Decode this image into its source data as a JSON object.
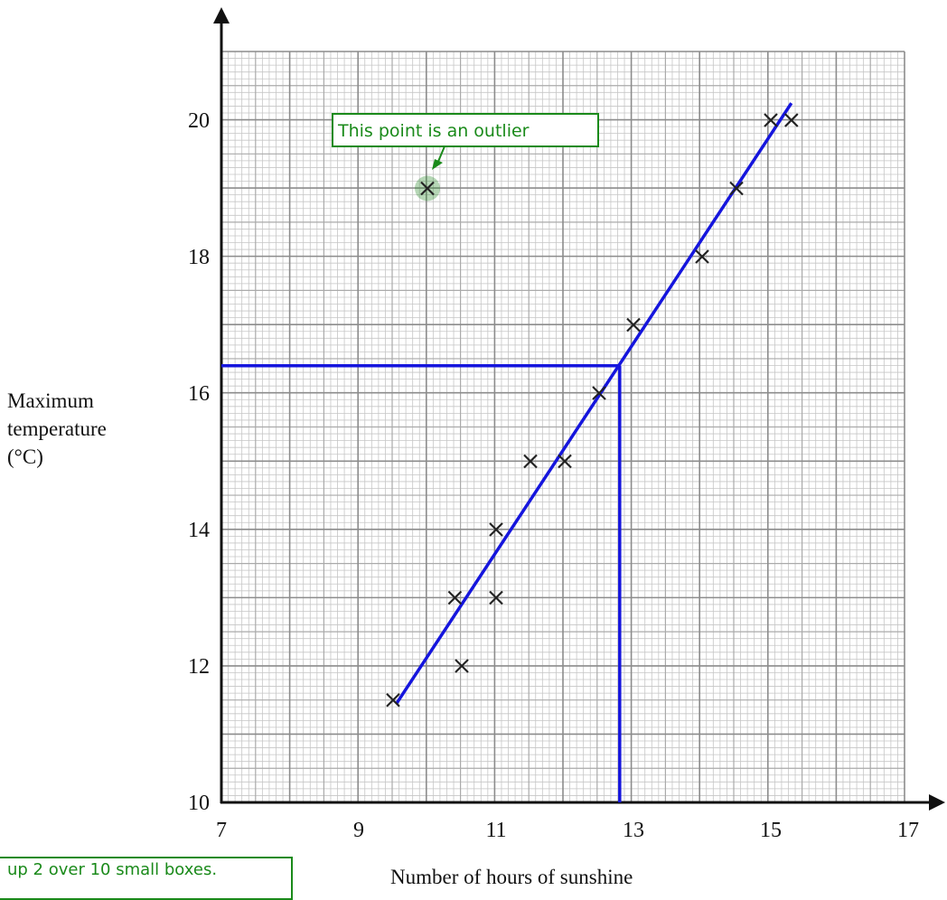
{
  "chart_data": {
    "type": "scatter",
    "xlabel": "Number of hours of sunshine",
    "ylabel_lines": [
      "Maximum",
      "temperature",
      "(°C)"
    ],
    "xlim": [
      7,
      17
    ],
    "ylim": [
      10,
      21
    ],
    "x_ticks": [
      7,
      9,
      11,
      13,
      15,
      17
    ],
    "y_ticks": [
      10,
      12,
      14,
      16,
      18,
      20
    ],
    "grid": true,
    "points": [
      {
        "x": 9.5,
        "y": 11.5
      },
      {
        "x": 10,
        "y": 19
      },
      {
        "x": 10.4,
        "y": 13
      },
      {
        "x": 10.5,
        "y": 12
      },
      {
        "x": 11,
        "y": 14
      },
      {
        "x": 11,
        "y": 13
      },
      {
        "x": 11.5,
        "y": 15
      },
      {
        "x": 12,
        "y": 15
      },
      {
        "x": 12.5,
        "y": 16
      },
      {
        "x": 13,
        "y": 17
      },
      {
        "x": 14,
        "y": 18
      },
      {
        "x": 14.5,
        "y": 19
      },
      {
        "x": 15,
        "y": 20
      },
      {
        "x": 15.3,
        "y": 20
      }
    ],
    "outlier": {
      "x": 10,
      "y": 19
    },
    "line_of_best_fit": {
      "x1": 9.55,
      "y1": 11.45,
      "x2": 15.3,
      "y2": 20.25
    },
    "reading": {
      "x": 12.8,
      "y": 16.4
    },
    "annotation": "This point is an outlier",
    "colors": {
      "fit_line": "#1515dd",
      "annotation": "#1a8a1a",
      "grid": "#a8a8a8",
      "marker": "#222222"
    }
  },
  "note": {
    "text": "up 2 over 10 small boxes."
  }
}
